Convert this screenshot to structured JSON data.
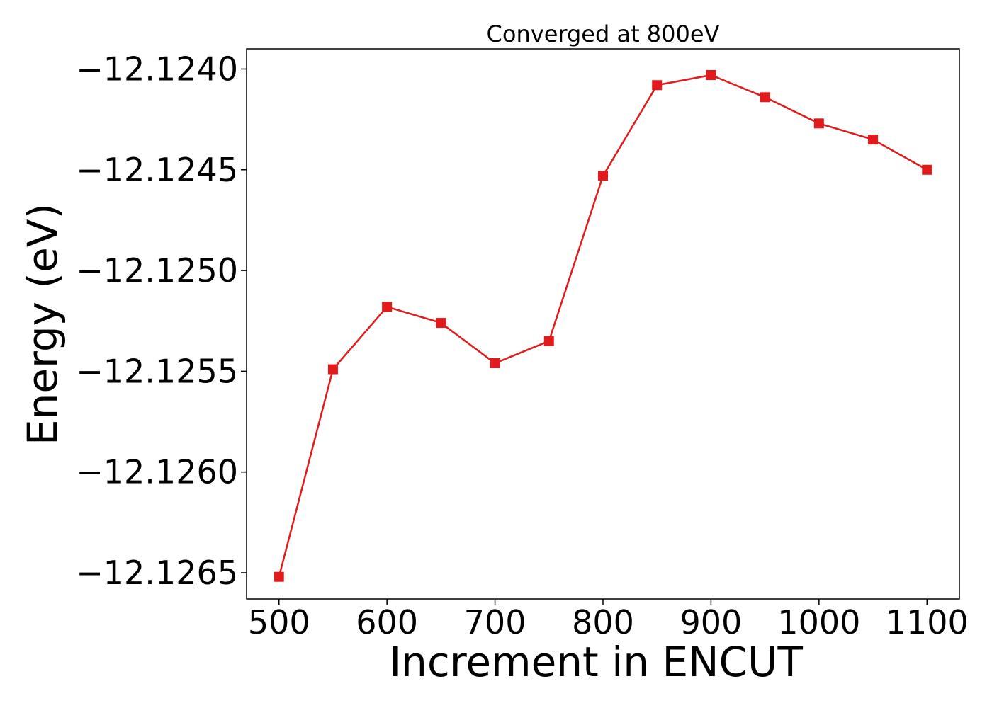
{
  "chart_data": {
    "type": "line",
    "title": "Converged at 800eV",
    "xlabel": "Increment in ENCUT",
    "ylabel": "Energy (eV)",
    "x": [
      500,
      550,
      600,
      650,
      700,
      750,
      800,
      850,
      900,
      950,
      1000,
      1050,
      1100
    ],
    "series": [
      {
        "values": [
          -12.12652,
          -12.12549,
          -12.12518,
          -12.12526,
          -12.12546,
          -12.12535,
          -12.12453,
          -12.12408,
          -12.12403,
          -12.12414,
          -12.12427,
          -12.12435,
          -12.1245
        ],
        "color": "#e31a1c",
        "marker": "square"
      }
    ],
    "xlim": [
      470,
      1130
    ],
    "ylim": [
      -12.12663,
      -12.1239
    ],
    "xticks": [
      500,
      600,
      700,
      800,
      900,
      1000,
      1100
    ],
    "xtick_labels": [
      "500",
      "600",
      "700",
      "800",
      "900",
      "1000",
      "1100"
    ],
    "yticks": [
      -12.124,
      -12.1245,
      -12.125,
      -12.1255,
      -12.126,
      -12.1265
    ],
    "ytick_labels": [
      "−12.1240",
      "−12.1245",
      "−12.1250",
      "−12.1255",
      "−12.1260",
      "−12.1265"
    ],
    "grid": false
  }
}
